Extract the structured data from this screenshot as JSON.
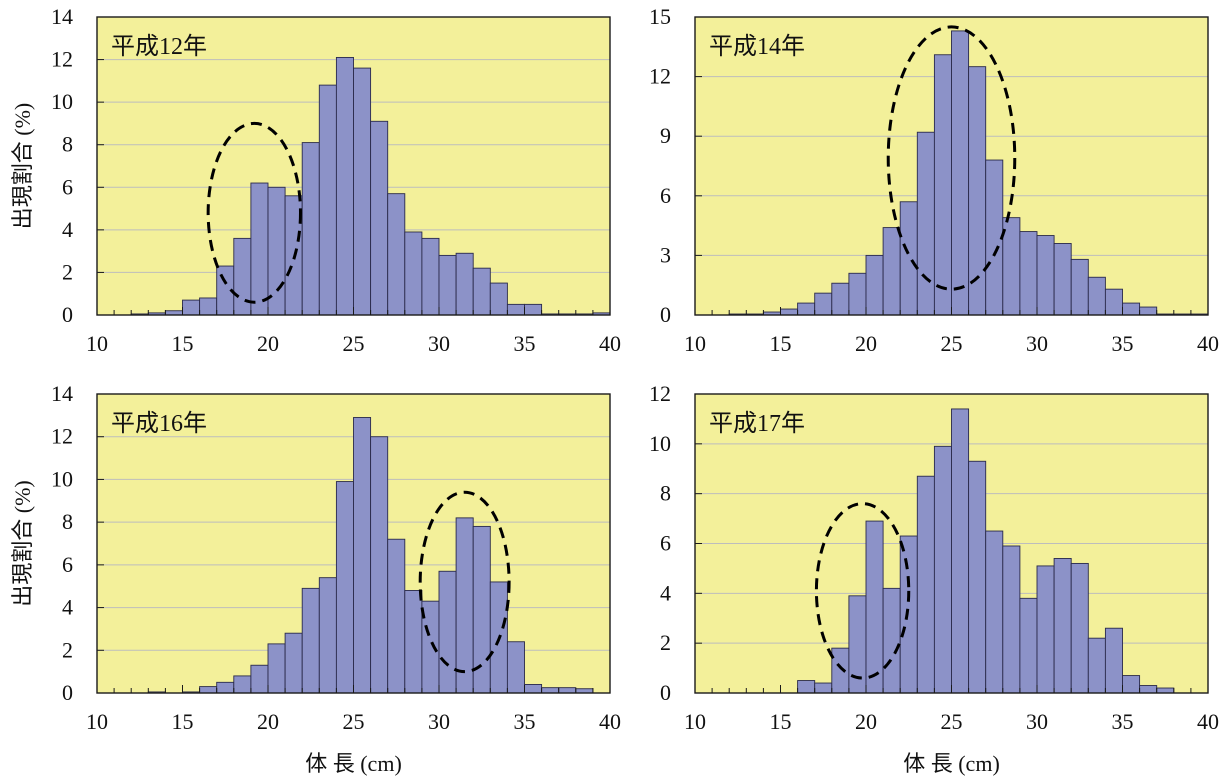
{
  "colors": {
    "plot_background": "#f3f09a",
    "bar_fill": "#8c92c8",
    "bar_stroke": "#2a2a4a",
    "axis": "#1a1a1a",
    "grid": "#bdbdbd",
    "highlight_ellipse": "#000000"
  },
  "chart_data": [
    {
      "type": "bar",
      "title": "平成12年",
      "xlabel": "",
      "ylabel": "出現割合 (%)",
      "xlim": [
        10,
        40
      ],
      "ylim": [
        0,
        14
      ],
      "xticks": [
        10,
        15,
        20,
        25,
        30,
        35,
        40
      ],
      "yticks": [
        0,
        2,
        4,
        6,
        8,
        10,
        12,
        14
      ],
      "grid": true,
      "bin_width": 1,
      "bin_start": 10,
      "values": [
        0,
        0,
        0.05,
        0.1,
        0.2,
        0.7,
        0.8,
        2.3,
        3.6,
        6.2,
        6.0,
        5.6,
        8.1,
        10.8,
        12.1,
        11.6,
        9.1,
        5.7,
        3.9,
        3.6,
        2.8,
        2.9,
        2.2,
        1.5,
        0.5,
        0.5,
        0.05,
        0.05,
        0.05,
        0.1
      ],
      "highlight": {
        "center_x": 19.2,
        "center_y": 4.8,
        "radius_x": 2.7,
        "radius_y": 4.2
      }
    },
    {
      "type": "bar",
      "title": "平成14年",
      "xlabel": "",
      "ylabel": "",
      "xlim": [
        10,
        40
      ],
      "ylim": [
        0,
        15
      ],
      "xticks": [
        10,
        15,
        20,
        25,
        30,
        35,
        40
      ],
      "yticks": [
        0,
        3,
        6,
        9,
        12,
        15
      ],
      "grid": true,
      "bin_width": 1,
      "bin_start": 10,
      "values": [
        0,
        0,
        0.05,
        0.05,
        0.15,
        0.3,
        0.6,
        1.1,
        1.6,
        2.1,
        3.0,
        4.4,
        5.7,
        9.2,
        13.1,
        14.3,
        12.5,
        7.8,
        4.9,
        4.2,
        4.0,
        3.6,
        2.8,
        1.9,
        1.3,
        0.6,
        0.4,
        0.05,
        0.05,
        0.05
      ],
      "highlight": {
        "center_x": 25.0,
        "center_y": 7.9,
        "radius_x": 3.7,
        "radius_y": 6.6
      }
    },
    {
      "type": "bar",
      "title": "平成16年",
      "xlabel": "体 長 (cm)",
      "ylabel": "出現割合 (%)",
      "xlim": [
        10,
        40
      ],
      "ylim": [
        0,
        14
      ],
      "xticks": [
        10,
        15,
        20,
        25,
        30,
        35,
        40
      ],
      "yticks": [
        0,
        2,
        4,
        6,
        8,
        10,
        12,
        14
      ],
      "grid": true,
      "bin_width": 1,
      "bin_start": 10,
      "values": [
        0,
        0,
        0,
        0.05,
        0,
        0.05,
        0.3,
        0.5,
        0.8,
        1.3,
        2.3,
        2.8,
        4.9,
        5.4,
        9.9,
        12.9,
        12.0,
        7.2,
        4.8,
        4.3,
        5.7,
        8.2,
        7.8,
        5.2,
        2.4,
        0.4,
        0.25,
        0.25,
        0.2,
        0
      ],
      "highlight": {
        "center_x": 31.5,
        "center_y": 5.2,
        "radius_x": 2.6,
        "radius_y": 4.2
      }
    },
    {
      "type": "bar",
      "title": "平成17年",
      "xlabel": "体 長 (cm)",
      "ylabel": "",
      "xlim": [
        10,
        40
      ],
      "ylim": [
        0,
        12
      ],
      "xticks": [
        10,
        15,
        20,
        25,
        30,
        35,
        40
      ],
      "yticks": [
        0,
        2,
        4,
        6,
        8,
        10,
        12
      ],
      "grid": true,
      "bin_width": 1,
      "bin_start": 10,
      "values": [
        0,
        0,
        0,
        0,
        0,
        0,
        0.5,
        0.4,
        1.8,
        3.9,
        6.9,
        4.2,
        6.3,
        8.7,
        9.9,
        11.4,
        9.3,
        6.5,
        5.9,
        3.8,
        5.1,
        5.4,
        5.2,
        2.2,
        2.6,
        0.7,
        0.3,
        0.2,
        0,
        0
      ],
      "highlight": {
        "center_x": 19.8,
        "center_y": 4.1,
        "radius_x": 2.7,
        "radius_y": 3.5
      }
    }
  ]
}
